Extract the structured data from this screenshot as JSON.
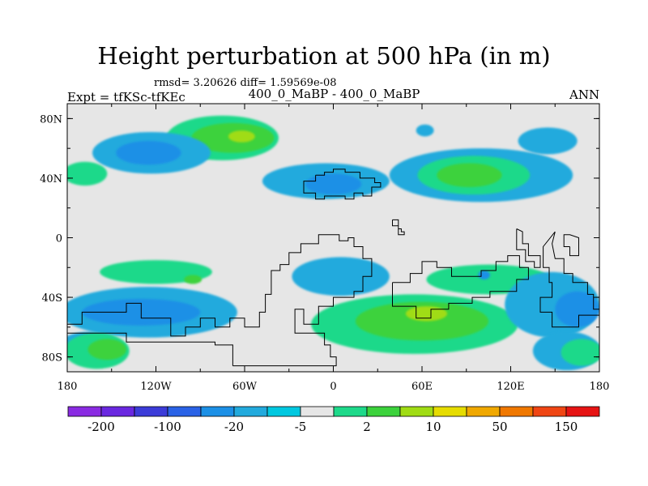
{
  "plot": {
    "title": "Height perturbation at 500 hPa (in m)",
    "stats": "rmsd= 3.20626 diff= 1.59569e-08",
    "subtitle": "400_0_MaBP - 400_0_MaBP",
    "experiment": "Expt = tfKSc-tfKEc",
    "season": "ANN"
  },
  "axes": {
    "y_ticks": [
      {
        "label": "80N",
        "lat": 80
      },
      {
        "label": "40N",
        "lat": 40
      },
      {
        "label": "0",
        "lat": 0
      },
      {
        "label": "40S",
        "lat": -40
      },
      {
        "label": "80S",
        "lat": -80
      }
    ],
    "x_ticks": [
      {
        "label": "180",
        "lon": -180
      },
      {
        "label": "120W",
        "lon": -120
      },
      {
        "label": "60W",
        "lon": -60
      },
      {
        "label": "0",
        "lon": 0
      },
      {
        "label": "60E",
        "lon": 60
      },
      {
        "label": "120E",
        "lon": 120
      },
      {
        "label": "180",
        "lon": 180
      }
    ],
    "lat_range": [
      -90,
      90
    ],
    "lon_range": [
      -180,
      180
    ]
  },
  "colorbar": {
    "colors": [
      "#8a2be2",
      "#6a28e0",
      "#3c3cd8",
      "#2a62e6",
      "#1c90e6",
      "#22aadd",
      "#00c8e0",
      "#e6e6e6",
      "#1ed98a",
      "#3cd23c",
      "#a0dc14",
      "#e6dc00",
      "#f0a800",
      "#f07800",
      "#f04614",
      "#e61414"
    ],
    "labels": [
      {
        "text": "-200",
        "boundary": 1
      },
      {
        "text": "-100",
        "boundary": 3
      },
      {
        "text": "-20",
        "boundary": 5
      },
      {
        "text": "-5",
        "boundary": 7
      },
      {
        "text": "2",
        "boundary": 9
      },
      {
        "text": "10",
        "boundary": 11
      },
      {
        "text": "50",
        "boundary": 13
      },
      {
        "text": "150",
        "boundary": 15
      }
    ]
  },
  "field": {
    "background": "#e6e6e6",
    "blobs": [
      {
        "id": "green-n-pacific",
        "color": "#1ed98a",
        "lon": -75,
        "lat": 67,
        "rlon": 38,
        "rlat": 15
      },
      {
        "id": "green-n-pacific-core",
        "color": "#3cd23c",
        "lon": -68,
        "lat": 67,
        "rlon": 28,
        "rlat": 10
      },
      {
        "id": "yellow-n-pacific",
        "color": "#a0dc14",
        "lon": -62,
        "lat": 68,
        "rlon": 9,
        "rlat": 4
      },
      {
        "id": "blue-n-america",
        "color": "#22aadd",
        "lon": -123,
        "lat": 57,
        "rlon": 40,
        "rlat": 14
      },
      {
        "id": "blue-n-america-core",
        "color": "#1c90e6",
        "lon": -125,
        "lat": 57,
        "rlon": 22,
        "rlat": 8
      },
      {
        "id": "cyan-n-europe",
        "color": "#22aadd",
        "lon": -5,
        "lat": 38,
        "rlon": 43,
        "rlat": 12
      },
      {
        "id": "blue-n-europe",
        "color": "#1c90e6",
        "lon": 0,
        "lat": 36,
        "rlon": 19,
        "rlat": 7
      },
      {
        "id": "cyan-n-asia",
        "color": "#22aadd",
        "lon": 100,
        "lat": 42,
        "rlon": 62,
        "rlat": 18
      },
      {
        "id": "green-n-asia",
        "color": "#1ed98a",
        "lon": 95,
        "lat": 42,
        "rlon": 38,
        "rlat": 13
      },
      {
        "id": "green-n-asia-core",
        "color": "#3cd23c",
        "lon": 92,
        "lat": 42,
        "rlon": 22,
        "rlat": 8
      },
      {
        "id": "cyan-ne-pacific",
        "color": "#22aadd",
        "lon": 145,
        "lat": 65,
        "rlon": 20,
        "rlat": 9
      },
      {
        "id": "green-w-edge",
        "color": "#1ed98a",
        "lon": -168,
        "lat": 43,
        "rlon": 15,
        "rlat": 8
      },
      {
        "id": "blue-arctic",
        "color": "#22aadd",
        "lon": 62,
        "lat": 72,
        "rlon": 6,
        "rlat": 4
      },
      {
        "id": "cyan-s-pacific",
        "color": "#22aadd",
        "lon": -125,
        "lat": -50,
        "rlon": 60,
        "rlat": 17
      },
      {
        "id": "blue-s-pacific",
        "color": "#1c90e6",
        "lon": -130,
        "lat": -50,
        "rlon": 40,
        "rlat": 9
      },
      {
        "id": "green-s-pacific",
        "color": "#1ed98a",
        "lon": -120,
        "lat": -23,
        "rlon": 38,
        "rlat": 8
      },
      {
        "id": "green-s-pacific-core",
        "color": "#3cd23c",
        "lon": -95,
        "lat": -28,
        "rlon": 6,
        "rlat": 3
      },
      {
        "id": "cyan-sw-edge",
        "color": "#22aadd",
        "lon": -165,
        "lat": -72,
        "rlon": 20,
        "rlat": 9
      },
      {
        "id": "green-sw-corner",
        "color": "#1ed98a",
        "lon": -160,
        "lat": -76,
        "rlon": 22,
        "rlat": 12
      },
      {
        "id": "green-sw-core",
        "color": "#3cd23c",
        "lon": -153,
        "lat": -75,
        "rlon": 13,
        "rlat": 7
      },
      {
        "id": "cyan-s-atlantic",
        "color": "#22aadd",
        "lon": 5,
        "lat": -26,
        "rlon": 33,
        "rlat": 13
      },
      {
        "id": "green-s-indian",
        "color": "#1ed98a",
        "lon": 55,
        "lat": -58,
        "rlon": 70,
        "rlat": 20
      },
      {
        "id": "green-s-indian-core",
        "color": "#3cd23c",
        "lon": 60,
        "lat": -56,
        "rlon": 45,
        "rlat": 13
      },
      {
        "id": "yellow-s-indian",
        "color": "#a0dc14",
        "lon": 63,
        "lat": -51,
        "rlon": 14,
        "rlat": 5
      },
      {
        "id": "green-s-africa",
        "color": "#1ed98a",
        "lon": 105,
        "lat": -28,
        "rlon": 42,
        "rlat": 10
      },
      {
        "id": "cyan-sw-australia",
        "color": "#22aadd",
        "lon": 148,
        "lat": -45,
        "rlon": 32,
        "rlat": 22
      },
      {
        "id": "blue-australia",
        "color": "#1c90e6",
        "lon": 165,
        "lat": -48,
        "rlon": 15,
        "rlat": 12
      },
      {
        "id": "cyan-se-corner",
        "color": "#22aadd",
        "lon": 158,
        "lat": -76,
        "rlon": 23,
        "rlat": 13
      },
      {
        "id": "green-se-corner",
        "color": "#1ed98a",
        "lon": 168,
        "lat": -77,
        "rlon": 14,
        "rlat": 9
      },
      {
        "id": "blue-small-e",
        "color": "#1c90e6",
        "lon": 102,
        "lat": -25,
        "rlon": 4,
        "rlat": 3
      }
    ]
  },
  "coastlines": [
    {
      "id": "north-block",
      "points": [
        [
          -12,
          42
        ],
        [
          -6,
          42
        ],
        [
          -6,
          44
        ],
        [
          0,
          44
        ],
        [
          0,
          46
        ],
        [
          8,
          46
        ],
        [
          8,
          44
        ],
        [
          18,
          44
        ],
        [
          18,
          40
        ],
        [
          28,
          40
        ],
        [
          28,
          37
        ],
        [
          32,
          37
        ],
        [
          32,
          34
        ],
        [
          26,
          34
        ],
        [
          26,
          28
        ],
        [
          20,
          28
        ],
        [
          20,
          30
        ],
        [
          14,
          30
        ],
        [
          14,
          26
        ],
        [
          8,
          26
        ],
        [
          8,
          28
        ],
        [
          -6,
          28
        ],
        [
          -6,
          26
        ],
        [
          -12,
          26
        ],
        [
          -12,
          30
        ],
        [
          -20,
          30
        ],
        [
          -20,
          38
        ],
        [
          -12,
          38
        ],
        [
          -12,
          42
        ]
      ]
    },
    {
      "id": "small-island",
      "points": [
        [
          40,
          12
        ],
        [
          44,
          12
        ],
        [
          44,
          6
        ],
        [
          46,
          6
        ],
        [
          46,
          4
        ],
        [
          48,
          4
        ],
        [
          48,
          2
        ],
        [
          44,
          2
        ],
        [
          44,
          8
        ],
        [
          40,
          8
        ],
        [
          40,
          12
        ]
      ]
    },
    {
      "id": "south-block",
      "points": [
        [
          -68,
          -86
        ],
        [
          -68,
          -72
        ],
        [
          -80,
          -72
        ],
        [
          -80,
          -70
        ],
        [
          -140,
          -70
        ],
        [
          -140,
          -64
        ],
        [
          -180,
          -64
        ],
        [
          -180,
          -58
        ],
        [
          -170,
          -58
        ],
        [
          -170,
          -50
        ],
        [
          -140,
          -50
        ],
        [
          -140,
          -44
        ],
        [
          -130,
          -44
        ],
        [
          -130,
          -54
        ],
        [
          -110,
          -54
        ],
        [
          -110,
          -66
        ],
        [
          -100,
          -66
        ],
        [
          -100,
          -60
        ],
        [
          -90,
          -60
        ],
        [
          -90,
          -54
        ],
        [
          -80,
          -54
        ],
        [
          -80,
          -60
        ],
        [
          -70,
          -60
        ],
        [
          -70,
          -54
        ],
        [
          -60,
          -54
        ],
        [
          -60,
          -60
        ],
        [
          -50,
          -60
        ],
        [
          -50,
          -50
        ],
        [
          -46,
          -50
        ],
        [
          -46,
          -38
        ],
        [
          -42,
          -38
        ],
        [
          -42,
          -22
        ],
        [
          -36,
          -22
        ],
        [
          -36,
          -18
        ],
        [
          -30,
          -18
        ],
        [
          -30,
          -10
        ],
        [
          -22,
          -10
        ],
        [
          -22,
          -4
        ],
        [
          -10,
          -4
        ],
        [
          -10,
          2
        ],
        [
          4,
          2
        ],
        [
          4,
          -2
        ],
        [
          10,
          -2
        ],
        [
          10,
          0
        ],
        [
          14,
          0
        ],
        [
          14,
          -6
        ],
        [
          20,
          -6
        ],
        [
          20,
          -14
        ],
        [
          26,
          -14
        ],
        [
          26,
          -26
        ],
        [
          20,
          -26
        ],
        [
          20,
          -36
        ],
        [
          14,
          -36
        ],
        [
          14,
          -40
        ],
        [
          0,
          -40
        ],
        [
          0,
          -46
        ],
        [
          -10,
          -46
        ],
        [
          -10,
          -58
        ],
        [
          -20,
          -58
        ],
        [
          -20,
          -48
        ],
        [
          -26,
          -48
        ],
        [
          -26,
          -64
        ],
        [
          -6,
          -64
        ],
        [
          -6,
          -72
        ],
        [
          -2,
          -72
        ],
        [
          -2,
          -80
        ],
        [
          2,
          -80
        ],
        [
          2,
          -86
        ],
        [
          -68,
          -86
        ]
      ]
    },
    {
      "id": "south-indian",
      "points": [
        [
          40,
          -30
        ],
        [
          40,
          -46
        ],
        [
          56,
          -46
        ],
        [
          56,
          -54
        ],
        [
          66,
          -54
        ],
        [
          66,
          -48
        ],
        [
          78,
          -48
        ],
        [
          78,
          -44
        ],
        [
          94,
          -44
        ],
        [
          94,
          -40
        ],
        [
          106,
          -40
        ],
        [
          106,
          -36
        ],
        [
          124,
          -36
        ],
        [
          124,
          -28
        ],
        [
          132,
          -28
        ],
        [
          132,
          -20
        ],
        [
          126,
          -20
        ],
        [
          126,
          -12
        ],
        [
          118,
          -12
        ],
        [
          118,
          -16
        ],
        [
          110,
          -16
        ],
        [
          110,
          -22
        ],
        [
          100,
          -22
        ],
        [
          100,
          -26
        ],
        [
          80,
          -26
        ],
        [
          80,
          -20
        ],
        [
          70,
          -20
        ],
        [
          70,
          -16
        ],
        [
          60,
          -16
        ],
        [
          60,
          -24
        ],
        [
          52,
          -24
        ],
        [
          52,
          -30
        ],
        [
          40,
          -30
        ]
      ]
    },
    {
      "id": "east-peninsula",
      "points": [
        [
          124,
          6
        ],
        [
          124,
          -8
        ],
        [
          130,
          -8
        ],
        [
          130,
          -16
        ],
        [
          136,
          -16
        ],
        [
          136,
          -20
        ],
        [
          140,
          -20
        ],
        [
          140,
          -12
        ],
        [
          132,
          -12
        ],
        [
          132,
          -4
        ],
        [
          128,
          -4
        ],
        [
          128,
          4
        ],
        [
          124,
          6
        ]
      ]
    },
    {
      "id": "east-spine",
      "points": [
        [
          150,
          4
        ],
        [
          148,
          -4
        ],
        [
          150,
          -14
        ],
        [
          156,
          -14
        ],
        [
          156,
          -24
        ],
        [
          162,
          -24
        ],
        [
          162,
          -30
        ],
        [
          172,
          -30
        ],
        [
          172,
          -38
        ],
        [
          176,
          -38
        ],
        [
          176,
          -48
        ],
        [
          180,
          -48
        ],
        [
          180,
          -52
        ],
        [
          166,
          -52
        ],
        [
          166,
          -60
        ],
        [
          148,
          -60
        ],
        [
          148,
          -50
        ],
        [
          140,
          -50
        ],
        [
          140,
          -40
        ],
        [
          148,
          -40
        ],
        [
          148,
          -30
        ],
        [
          146,
          -30
        ],
        [
          146,
          -20
        ],
        [
          142,
          -20
        ],
        [
          142,
          -6
        ],
        [
          150,
          4
        ]
      ]
    },
    {
      "id": "east-hook",
      "points": [
        [
          160,
          -6
        ],
        [
          160,
          -12
        ],
        [
          166,
          -12
        ],
        [
          166,
          0
        ],
        [
          160,
          2
        ],
        [
          156,
          2
        ],
        [
          156,
          -6
        ],
        [
          160,
          -6
        ]
      ]
    }
  ]
}
